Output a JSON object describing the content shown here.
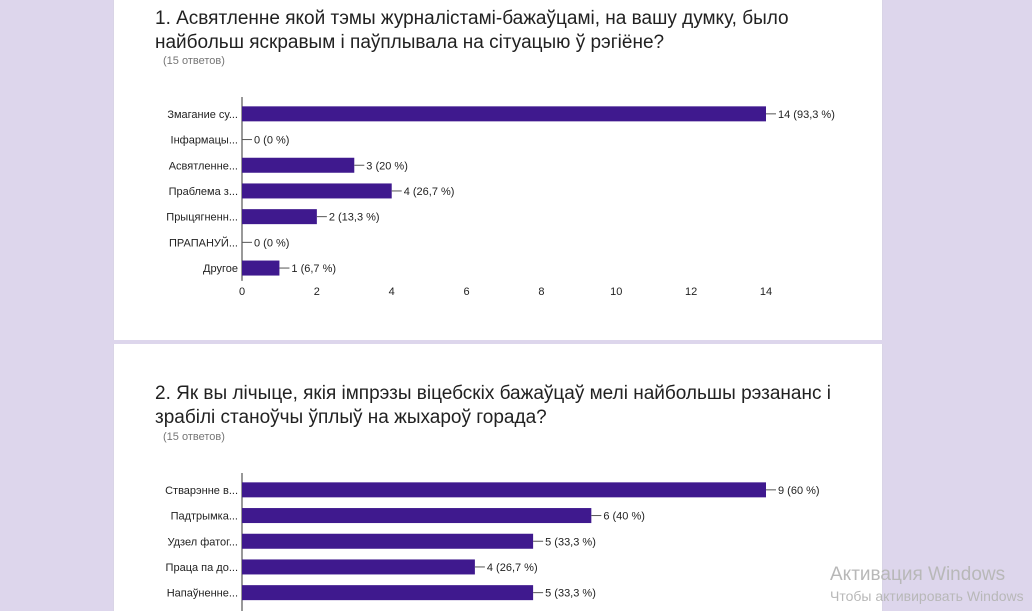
{
  "questions": [
    {
      "title": "1. Асвятленне якой тэмы журналістамі-бажаўцамі, на вашу думку, было найбольш яскравым і паўплывала на сітуацыю ў рэгіёне?",
      "responses": "(15 ответов)"
    },
    {
      "title": "2. Як вы лічыце, якія імпрэзы віцебскіх бажаўцаў мелі найбольшы рэзананс і зрабілі станоўчы ўплыў на жыхароў горада?",
      "responses": "(15 ответов)"
    }
  ],
  "chart_data": [
    {
      "type": "bar",
      "orientation": "horizontal",
      "categories": [
        "Змагание су...",
        "Інфармацы...",
        "Асвятленне...",
        "Праблема з...",
        "Прыцягненн...",
        "ПРАПАНУЙ...",
        "Другое"
      ],
      "values": [
        14,
        0,
        3,
        4,
        2,
        0,
        1
      ],
      "value_labels": [
        "14 (93,3 %)",
        "0 (0 %)",
        "3 (20 %)",
        "4 (26,7 %)",
        "2 (13,3 %)",
        "0 (0 %)",
        "1 (6,7 %)"
      ],
      "xlim": [
        0,
        14
      ],
      "xticks": [
        "0",
        "2",
        "4",
        "6",
        "8",
        "10",
        "12",
        "14"
      ],
      "bar_color": "#3f198e"
    },
    {
      "type": "bar",
      "orientation": "horizontal",
      "categories": [
        "Стварэнне в...",
        "Падтрымка...",
        "Удзел фатог...",
        "Праца па до...",
        "Напаўненне..."
      ],
      "values": [
        9,
        6,
        5,
        4,
        5
      ],
      "value_labels": [
        "9 (60 %)",
        "6 (40 %)",
        "5 (33,3 %)",
        "4 (26,7 %)",
        "5 (33,3 %)"
      ],
      "xlim": [
        0,
        9
      ],
      "bar_color": "#3f198e"
    }
  ],
  "watermark": {
    "line1": "Активация Windows",
    "line2": "Чтобы активировать Windows"
  }
}
